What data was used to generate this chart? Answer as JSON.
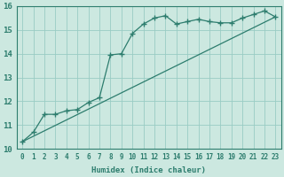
{
  "xlabel": "Humidex (Indice chaleur)",
  "xlim": [
    -0.5,
    23.5
  ],
  "ylim": [
    10,
    16
  ],
  "yticks": [
    10,
    11,
    12,
    13,
    14,
    15,
    16
  ],
  "xticks": [
    0,
    1,
    2,
    3,
    4,
    5,
    6,
    7,
    8,
    9,
    10,
    11,
    12,
    13,
    14,
    15,
    16,
    17,
    18,
    19,
    20,
    21,
    22,
    23
  ],
  "bg_color": "#cce8e0",
  "grid_color": "#99ccc4",
  "line_color": "#2d7d6e",
  "line1_x": [
    0,
    1,
    2,
    3,
    4,
    5,
    6,
    7,
    8,
    9,
    10,
    11,
    12,
    13,
    14,
    15,
    16,
    17,
    18,
    19,
    20,
    21,
    22,
    23
  ],
  "line1_y": [
    10.3,
    10.7,
    11.45,
    11.45,
    11.6,
    11.65,
    11.95,
    12.15,
    13.95,
    14.0,
    14.85,
    15.25,
    15.5,
    15.6,
    15.25,
    15.35,
    15.45,
    15.35,
    15.3,
    15.3,
    15.5,
    15.65,
    15.8,
    15.55
  ],
  "line2_x": [
    0,
    23
  ],
  "line2_y": [
    10.3,
    15.55
  ]
}
